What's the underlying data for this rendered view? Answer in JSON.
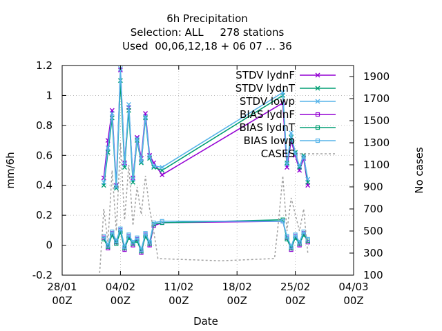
{
  "chart_data": {
    "type": "line",
    "title_lines": [
      "6h Precipitation",
      "Selection: ALL     278 stations",
      "Used  00,06,12,18 + 06 07 ... 36"
    ],
    "xlabel": "Date",
    "ylabel": "mm/6h",
    "y2label": "No cases",
    "x_range_days": [
      "28/01",
      "04/03"
    ],
    "ylim": [
      -0.2,
      1.2
    ],
    "y2lim": [
      100,
      2000
    ],
    "grid": true,
    "legend_position": "top-right",
    "x_ticks": [
      {
        "line1": "28/01",
        "line2": "00Z"
      },
      {
        "line1": "04/02",
        "line2": "00Z"
      },
      {
        "line1": "11/02",
        "line2": "00Z"
      },
      {
        "line1": "18/02",
        "line2": "00Z"
      },
      {
        "line1": "25/02",
        "line2": "00Z"
      },
      {
        "line1": "04/03",
        "line2": "00Z"
      }
    ],
    "y_ticks": [
      "-0.2",
      "0",
      "0.2",
      "0.4",
      "0.6",
      "0.8",
      "1",
      "1.2"
    ],
    "y2_ticks": [
      "100",
      "300",
      "500",
      "700",
      "900",
      "1100",
      "1300",
      "1500",
      "1700",
      "1900"
    ],
    "series": [
      {
        "name": "STDV lydnF",
        "color": "#9400d3",
        "marker": "x",
        "dash": false,
        "points": [
          [
            "02/02 00Z",
            0.45
          ],
          [
            "02/02 12Z",
            0.7
          ],
          [
            "03/02 00Z",
            0.9
          ],
          [
            "03/02 12Z",
            0.4
          ],
          [
            "04/02 00Z",
            1.17
          ],
          [
            "04/02 12Z",
            0.55
          ],
          [
            "05/02 00Z",
            0.92
          ],
          [
            "05/02 12Z",
            0.45
          ],
          [
            "06/02 00Z",
            0.72
          ],
          [
            "06/02 12Z",
            0.58
          ],
          [
            "07/02 00Z",
            0.88
          ],
          [
            "07/02 12Z",
            0.6
          ],
          [
            "08/02 00Z",
            0.55
          ],
          [
            "09/02 00Z",
            0.47
          ],
          [
            "23/02 12Z",
            0.95
          ],
          [
            "24/02 00Z",
            0.52
          ],
          [
            "24/02 12Z",
            0.7
          ],
          [
            "25/02 00Z",
            0.6
          ],
          [
            "25/02 12Z",
            0.5
          ],
          [
            "26/02 00Z",
            0.58
          ],
          [
            "26/02 12Z",
            0.4
          ]
        ]
      },
      {
        "name": "STDV lydnT",
        "color": "#009e73",
        "marker": "x",
        "dash": false,
        "points": [
          [
            "02/02 00Z",
            0.4
          ],
          [
            "02/02 12Z",
            0.62
          ],
          [
            "03/02 00Z",
            0.85
          ],
          [
            "03/02 12Z",
            0.38
          ],
          [
            "04/02 00Z",
            1.1
          ],
          [
            "04/02 12Z",
            0.52
          ],
          [
            "05/02 00Z",
            0.9
          ],
          [
            "05/02 12Z",
            0.42
          ],
          [
            "06/02 00Z",
            0.7
          ],
          [
            "06/02 12Z",
            0.55
          ],
          [
            "07/02 00Z",
            0.85
          ],
          [
            "07/02 12Z",
            0.58
          ],
          [
            "08/02 00Z",
            0.52
          ],
          [
            "09/02 00Z",
            0.5
          ],
          [
            "23/02 12Z",
            1.0
          ],
          [
            "24/02 00Z",
            0.55
          ],
          [
            "24/02 12Z",
            0.72
          ],
          [
            "25/02 00Z",
            0.62
          ],
          [
            "25/02 12Z",
            0.52
          ],
          [
            "26/02 00Z",
            0.6
          ],
          [
            "26/02 12Z",
            0.42
          ]
        ]
      },
      {
        "name": "STDV lowp",
        "color": "#56b4e9",
        "marker": "x",
        "dash": false,
        "points": [
          [
            "02/02 00Z",
            0.42
          ],
          [
            "02/02 12Z",
            0.65
          ],
          [
            "03/02 00Z",
            0.88
          ],
          [
            "03/02 12Z",
            0.39
          ],
          [
            "04/02 00Z",
            1.18
          ],
          [
            "04/02 12Z",
            0.54
          ],
          [
            "05/02 00Z",
            0.94
          ],
          [
            "05/02 12Z",
            0.44
          ],
          [
            "06/02 00Z",
            0.71
          ],
          [
            "06/02 12Z",
            0.56
          ],
          [
            "07/02 00Z",
            0.86
          ],
          [
            "07/02 12Z",
            0.59
          ],
          [
            "08/02 00Z",
            0.53
          ],
          [
            "09/02 00Z",
            0.52
          ],
          [
            "23/02 12Z",
            1.02
          ],
          [
            "24/02 00Z",
            0.54
          ],
          [
            "24/02 12Z",
            0.75
          ],
          [
            "25/02 00Z",
            0.61
          ],
          [
            "25/02 12Z",
            0.53
          ],
          [
            "26/02 00Z",
            0.59
          ],
          [
            "26/02 12Z",
            0.44
          ]
        ]
      },
      {
        "name": "BIAS lydnF",
        "color": "#9400d3",
        "marker": "sq",
        "dash": false,
        "points": [
          [
            "02/02 00Z",
            0.05
          ],
          [
            "02/02 12Z",
            -0.02
          ],
          [
            "03/02 00Z",
            0.08
          ],
          [
            "03/02 12Z",
            0.02
          ],
          [
            "04/02 00Z",
            0.1
          ],
          [
            "04/02 12Z",
            -0.03
          ],
          [
            "05/02 00Z",
            0.06
          ],
          [
            "05/02 12Z",
            0.0
          ],
          [
            "06/02 00Z",
            0.04
          ],
          [
            "06/02 12Z",
            -0.05
          ],
          [
            "07/02 00Z",
            0.07
          ],
          [
            "07/02 12Z",
            0.0
          ],
          [
            "08/02 00Z",
            0.13
          ],
          [
            "09/02 00Z",
            0.15
          ],
          [
            "23/02 12Z",
            0.16
          ],
          [
            "24/02 00Z",
            0.05
          ],
          [
            "24/02 12Z",
            -0.03
          ],
          [
            "25/02 00Z",
            0.06
          ],
          [
            "25/02 12Z",
            0.0
          ],
          [
            "26/02 00Z",
            0.08
          ],
          [
            "26/02 12Z",
            0.02
          ]
        ]
      },
      {
        "name": "BIAS lydnT",
        "color": "#009e73",
        "marker": "sq",
        "dash": false,
        "points": [
          [
            "02/02 00Z",
            0.04
          ],
          [
            "02/02 12Z",
            -0.01
          ],
          [
            "03/02 00Z",
            0.07
          ],
          [
            "03/02 12Z",
            0.01
          ],
          [
            "04/02 00Z",
            0.09
          ],
          [
            "04/02 12Z",
            -0.02
          ],
          [
            "05/02 00Z",
            0.05
          ],
          [
            "05/02 12Z",
            0.01
          ],
          [
            "06/02 00Z",
            0.03
          ],
          [
            "06/02 12Z",
            -0.04
          ],
          [
            "07/02 00Z",
            0.06
          ],
          [
            "07/02 12Z",
            0.01
          ],
          [
            "08/02 00Z",
            0.14
          ],
          [
            "09/02 00Z",
            0.15
          ],
          [
            "23/02 12Z",
            0.17
          ],
          [
            "24/02 00Z",
            0.04
          ],
          [
            "24/02 12Z",
            -0.02
          ],
          [
            "25/02 00Z",
            0.05
          ],
          [
            "25/02 12Z",
            0.01
          ],
          [
            "26/02 00Z",
            0.07
          ],
          [
            "26/02 12Z",
            0.03
          ]
        ]
      },
      {
        "name": "BIAS lowp",
        "color": "#56b4e9",
        "marker": "sq",
        "dash": false,
        "points": [
          [
            "02/02 00Z",
            0.06
          ],
          [
            "02/02 12Z",
            0.0
          ],
          [
            "03/02 00Z",
            0.09
          ],
          [
            "03/02 12Z",
            0.03
          ],
          [
            "04/02 00Z",
            0.11
          ],
          [
            "04/02 12Z",
            -0.01
          ],
          [
            "05/02 00Z",
            0.07
          ],
          [
            "05/02 12Z",
            0.02
          ],
          [
            "06/02 00Z",
            0.05
          ],
          [
            "06/02 12Z",
            -0.03
          ],
          [
            "07/02 00Z",
            0.08
          ],
          [
            "07/02 12Z",
            0.02
          ],
          [
            "08/02 00Z",
            0.15
          ],
          [
            "09/02 00Z",
            0.16
          ],
          [
            "23/02 12Z",
            0.16
          ],
          [
            "24/02 00Z",
            0.06
          ],
          [
            "24/02 12Z",
            -0.01
          ],
          [
            "25/02 00Z",
            0.07
          ],
          [
            "25/02 12Z",
            0.02
          ],
          [
            "26/02 00Z",
            0.09
          ],
          [
            "26/02 12Z",
            0.04
          ]
        ]
      },
      {
        "name": "CASES",
        "color": "#a0a0a0",
        "marker": "none",
        "dash": true,
        "axis": "y2",
        "points": [
          [
            "01/02 12Z",
            120
          ],
          [
            "02/02 00Z",
            700
          ],
          [
            "02/02 12Z",
            400
          ],
          [
            "03/02 00Z",
            1050
          ],
          [
            "03/02 12Z",
            500
          ],
          [
            "04/02 00Z",
            1300
          ],
          [
            "04/02 12Z",
            600
          ],
          [
            "05/02 00Z",
            1100
          ],
          [
            "05/02 12Z",
            550
          ],
          [
            "06/02 00Z",
            900
          ],
          [
            "06/02 12Z",
            650
          ],
          [
            "07/02 00Z",
            1000
          ],
          [
            "07/02 12Z",
            700
          ],
          [
            "08/02 00Z",
            500
          ],
          [
            "08/02 12Z",
            250
          ],
          [
            "16/02 00Z",
            230
          ],
          [
            "22/02 12Z",
            250
          ],
          [
            "23/02 00Z",
            600
          ],
          [
            "23/02 12Z",
            1000
          ],
          [
            "24/02 00Z",
            500
          ],
          [
            "24/02 12Z",
            800
          ],
          [
            "25/02 00Z",
            650
          ],
          [
            "25/02 12Z",
            500
          ],
          [
            "26/02 00Z",
            700
          ],
          [
            "26/02 12Z",
            300
          ]
        ]
      }
    ]
  }
}
